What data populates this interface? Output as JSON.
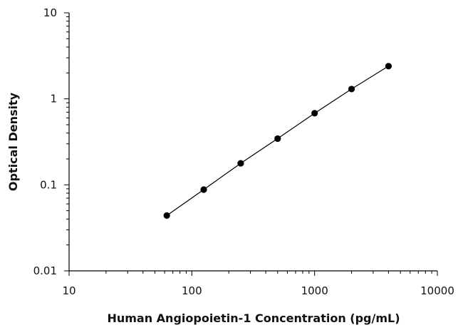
{
  "chart_data": {
    "type": "scatter",
    "title": "",
    "xlabel": "Human Angiopoietin-1 Concentration (pg/mL)",
    "ylabel": "Optical Density",
    "xscale": "log",
    "yscale": "log",
    "xlim": [
      10,
      10000
    ],
    "ylim": [
      0.01,
      10
    ],
    "x_tick_labels": [
      "10",
      "100",
      "1000",
      "10000"
    ],
    "y_tick_labels": [
      "0.01",
      "0.1",
      "1",
      "10"
    ],
    "grid": false,
    "legend": "none",
    "series": [
      {
        "x": [
          62.5,
          125,
          250,
          500,
          1000,
          2000,
          4000
        ],
        "y": [
          0.044,
          0.088,
          0.178,
          0.345,
          0.68,
          1.3,
          2.4
        ],
        "marker": "circle",
        "color": "#000000",
        "connected": true
      }
    ]
  }
}
